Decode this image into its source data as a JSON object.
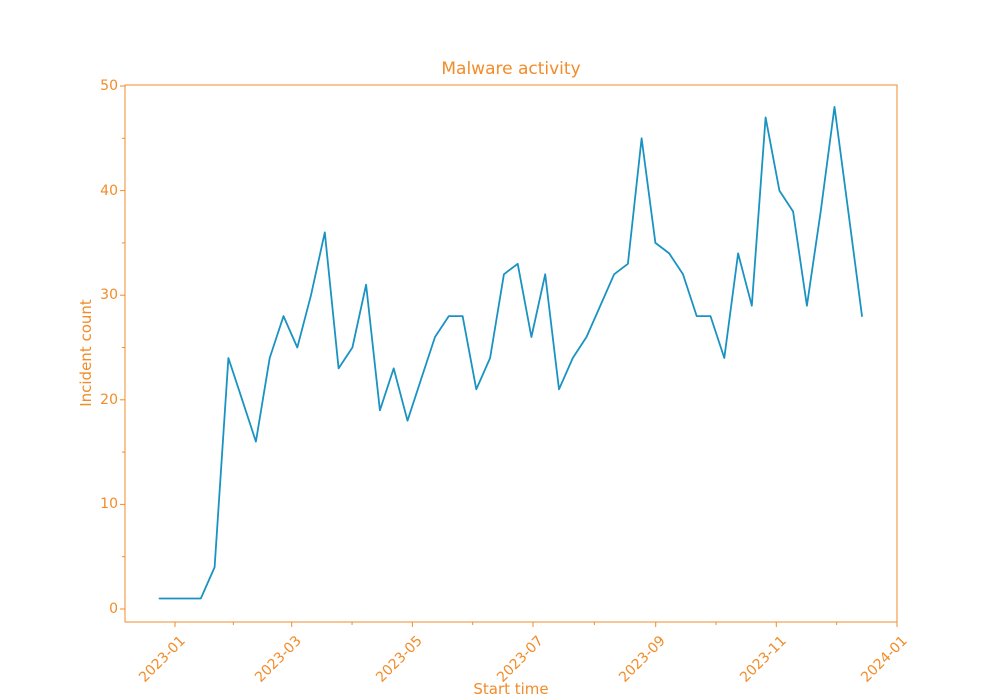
{
  "title": "Malware activity",
  "axes": {
    "x_label": "Start time",
    "y_label": "Incident count"
  },
  "colors": {
    "axis_orange": "#f28c28",
    "line_blue": "#1a93c2",
    "background": "#ffffff"
  },
  "chart_data": {
    "type": "line",
    "title": "Malware activity",
    "xlabel": "Start time",
    "ylabel": "Incident count",
    "series_name": "Incident count",
    "x_frequency": "weekly",
    "x": [
      "2022-12-25",
      "2023-01-01",
      "2023-01-08",
      "2023-01-15",
      "2023-01-22",
      "2023-01-29",
      "2023-02-05",
      "2023-02-12",
      "2023-02-19",
      "2023-02-26",
      "2023-03-05",
      "2023-03-12",
      "2023-03-19",
      "2023-03-26",
      "2023-04-02",
      "2023-04-09",
      "2023-04-16",
      "2023-04-23",
      "2023-04-30",
      "2023-05-07",
      "2023-05-14",
      "2023-05-21",
      "2023-05-28",
      "2023-06-04",
      "2023-06-11",
      "2023-06-18",
      "2023-06-25",
      "2023-07-02",
      "2023-07-09",
      "2023-07-16",
      "2023-07-23",
      "2023-07-30",
      "2023-08-06",
      "2023-08-13",
      "2023-08-20",
      "2023-08-27",
      "2023-09-03",
      "2023-09-10",
      "2023-09-17",
      "2023-09-24",
      "2023-10-01",
      "2023-10-08",
      "2023-10-15",
      "2023-10-22",
      "2023-10-29",
      "2023-11-05",
      "2023-11-12",
      "2023-11-19",
      "2023-11-26",
      "2023-12-03",
      "2023-12-10",
      "2023-12-17"
    ],
    "values": [
      1,
      1,
      1,
      1,
      4,
      24,
      20,
      16,
      24,
      28,
      25,
      30,
      36,
      23,
      25,
      31,
      19,
      23,
      18,
      22,
      26,
      28,
      28,
      21,
      24,
      32,
      33,
      26,
      32,
      21,
      24,
      26,
      29,
      32,
      33,
      45,
      35,
      34,
      32,
      28,
      28,
      24,
      34,
      29,
      47,
      40,
      38,
      29,
      38,
      48,
      38,
      28
    ],
    "xtick_labels": [
      "2023-01",
      "2023-03",
      "2023-05",
      "2023-07",
      "2023-09",
      "2023-11",
      "2024-01"
    ],
    "ytick_labels": [
      "0",
      "10",
      "20",
      "30",
      "40",
      "50"
    ],
    "yticks": [
      0,
      10,
      20,
      30,
      40,
      50
    ],
    "ylim": [
      0,
      50
    ],
    "grid": false,
    "legend": null
  }
}
